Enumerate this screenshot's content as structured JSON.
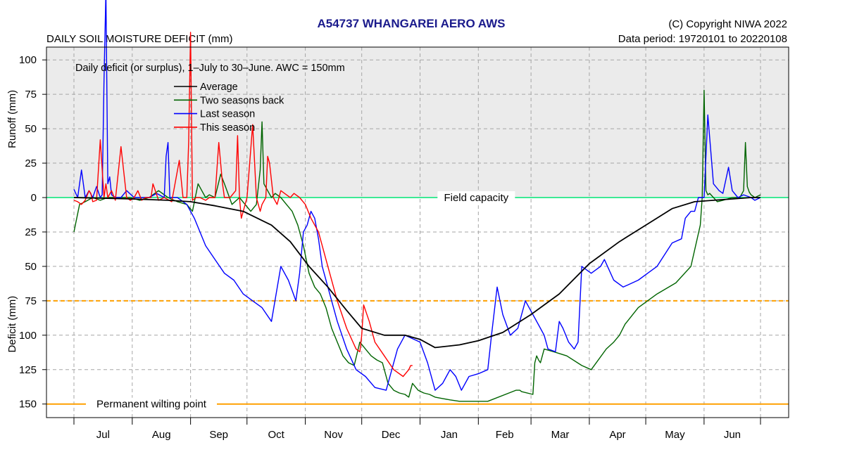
{
  "header": {
    "title": "A54737  WHANGAREI AERO AWS",
    "subtitle_left": "DAILY SOIL MOISTURE DEFICIT (mm)",
    "copyright": "(C) Copyright NIWA  2022",
    "data_period": "Data period:  19720101  to  20220108"
  },
  "colors": {
    "title": "#1a1a8c",
    "surplus_band": "#ebebeb",
    "field_capacity": "#00e676",
    "readily_available": "#ffa000",
    "wilting_point": "#ffa000",
    "average": "#000000",
    "two_seasons_back": "#006400",
    "last_season": "#0000ff",
    "this_season": "#ff0000"
  },
  "chart_data": {
    "type": "line",
    "title": "A54737  WHANGAREI AERO AWS",
    "annotation": "Daily deficit (or surplus), 1–July to 30–June.  AWC = 150mm",
    "ylabel_upper": "Runoff (mm)",
    "ylabel_lower": "Deficit (mm)",
    "y_is_deficit_positive_down": true,
    "ylim": [
      -110,
      160
    ],
    "yticks": [
      -100,
      -75,
      -50,
      -25,
      0,
      25,
      50,
      75,
      100,
      125,
      150
    ],
    "ytick_labels": [
      "100",
      "75",
      "50",
      "25",
      "0",
      "25",
      "50",
      "75",
      "100",
      "125",
      "150"
    ],
    "xlim_days": [
      0,
      365
    ],
    "months": [
      "Jul",
      "Aug",
      "Sep",
      "Oct",
      "Nov",
      "Dec",
      "Jan",
      "Feb",
      "Mar",
      "Apr",
      "May",
      "Jun"
    ],
    "month_start_days": [
      0,
      31,
      62,
      92,
      123,
      153,
      184,
      215,
      243,
      274,
      304,
      335,
      365
    ],
    "grid": true,
    "reference_lines": [
      {
        "label": "Field capacity",
        "y": 0
      },
      {
        "label": "",
        "y": 75
      },
      {
        "label": "Permanent wilting point",
        "y": 150
      }
    ],
    "legend": {
      "position": "top-left",
      "entries": [
        "Average",
        "Two seasons back",
        "Last season",
        "This season"
      ]
    },
    "series": [
      {
        "name": "Average",
        "x": [
          0,
          31,
          50,
          62,
          75,
          90,
          105,
          115,
          125,
          135,
          145,
          153,
          165,
          176,
          184,
          192,
          205,
          215,
          228,
          243,
          258,
          274,
          290,
          304,
          318,
          330,
          340,
          350,
          360,
          365
        ],
        "y": [
          0,
          1,
          2,
          3,
          6,
          10,
          20,
          32,
          50,
          65,
          82,
          95,
          100,
          100,
          103,
          109,
          107,
          104,
          98,
          85,
          70,
          48,
          32,
          20,
          8,
          3,
          2,
          1,
          0,
          0
        ]
      },
      {
        "name": "Two seasons back",
        "x": [
          0,
          3,
          6,
          10,
          14,
          18,
          22,
          27,
          30,
          35,
          40,
          45,
          50,
          55,
          60,
          63,
          66,
          68,
          70,
          72,
          75,
          78,
          80,
          84,
          88,
          91,
          94,
          97,
          99,
          100,
          101,
          103,
          105,
          107,
          110,
          113,
          116,
          119,
          122,
          125,
          128,
          131,
          134,
          137,
          140,
          143,
          146,
          149,
          152,
          155,
          158,
          161,
          164,
          167,
          170,
          173,
          176,
          178,
          180,
          183,
          186,
          189,
          192,
          196,
          200,
          205,
          210,
          215,
          220,
          235,
          236,
          237,
          238,
          244,
          245,
          246,
          247,
          248,
          250,
          255,
          262,
          270,
          275,
          283,
          287,
          290,
          293,
          300,
          310,
          320,
          328,
          333,
          334,
          335,
          336,
          337,
          338,
          340,
          342,
          345,
          350,
          354,
          356,
          357,
          358,
          359,
          360,
          362,
          365
        ],
        "y": [
          25,
          5,
          3,
          0,
          2,
          0,
          0,
          0,
          0,
          2,
          0,
          -5,
          0,
          3,
          5,
          10,
          -10,
          -5,
          0,
          -2,
          0,
          -17,
          -10,
          5,
          0,
          5,
          10,
          5,
          -20,
          -55,
          -10,
          -5,
          0,
          -3,
          0,
          5,
          10,
          20,
          35,
          55,
          65,
          70,
          80,
          95,
          105,
          115,
          120,
          122,
          105,
          110,
          115,
          118,
          120,
          135,
          140,
          142,
          143,
          145,
          135,
          140,
          142,
          143,
          145,
          146,
          147,
          148,
          148,
          148,
          148,
          140,
          140,
          140,
          141,
          143,
          120,
          115,
          118,
          120,
          110,
          112,
          115,
          122,
          125,
          110,
          105,
          100,
          92,
          80,
          70,
          62,
          50,
          20,
          0,
          -78,
          -5,
          -2,
          -3,
          0,
          3,
          2,
          0,
          0,
          -5,
          -40,
          -8,
          -4,
          -2,
          0,
          -2
        ]
      },
      {
        "name": "Last season",
        "x": [
          0,
          2,
          4,
          6,
          8,
          10,
          12,
          14,
          15,
          16,
          17,
          18,
          19,
          20,
          22,
          25,
          28,
          32,
          36,
          40,
          44,
          48,
          49,
          50,
          51,
          55,
          60,
          64,
          70,
          75,
          80,
          85,
          90,
          95,
          100,
          105,
          110,
          114,
          118,
          120,
          122,
          124,
          126,
          128,
          130,
          132,
          135,
          140,
          145,
          150,
          155,
          160,
          166,
          172,
          176,
          184,
          188,
          192,
          196,
          198,
          200,
          203,
          206,
          210,
          215,
          220,
          222,
          225,
          228,
          232,
          236,
          240,
          244,
          248,
          250,
          252,
          256,
          258,
          260,
          263,
          266,
          268,
          270,
          275,
          280,
          282,
          287,
          292,
          300,
          305,
          310,
          318,
          323,
          325,
          328,
          330,
          332,
          335,
          337,
          340,
          343,
          345,
          348,
          350,
          353,
          356,
          360,
          362,
          365
        ],
        "y": [
          -6,
          0,
          -20,
          0,
          -5,
          0,
          -8,
          0,
          -2,
          -85,
          -150,
          -10,
          -15,
          -2,
          0,
          0,
          -5,
          0,
          0,
          0,
          -3,
          0,
          -30,
          -40,
          0,
          0,
          5,
          15,
          35,
          45,
          55,
          60,
          70,
          75,
          80,
          90,
          50,
          60,
          75,
          55,
          25,
          20,
          10,
          15,
          30,
          50,
          65,
          90,
          110,
          125,
          130,
          138,
          140,
          110,
          100,
          105,
          120,
          140,
          135,
          130,
          125,
          130,
          140,
          130,
          128,
          125,
          100,
          65,
          85,
          100,
          95,
          75,
          85,
          95,
          100,
          110,
          112,
          90,
          95,
          105,
          110,
          105,
          50,
          55,
          50,
          45,
          60,
          65,
          60,
          55,
          50,
          33,
          30,
          15,
          10,
          10,
          0,
          0,
          -60,
          -10,
          -5,
          -3,
          -22,
          -5,
          0,
          -2,
          0,
          2,
          0
        ]
      },
      {
        "name": "This season",
        "x": [
          0,
          2,
          4,
          6,
          8,
          9,
          10,
          12,
          14,
          16,
          17,
          18,
          20,
          22,
          25,
          28,
          30,
          32,
          34,
          36,
          38,
          41,
          42,
          45,
          48,
          52,
          56,
          58,
          60,
          61,
          62,
          63,
          65,
          67,
          70,
          72,
          75,
          77,
          79,
          80,
          83,
          86,
          87,
          88,
          89,
          92,
          95,
          97,
          98,
          99,
          100,
          102,
          103,
          104,
          106,
          108,
          110,
          113,
          115,
          117,
          120,
          123,
          126,
          130,
          135,
          140,
          145,
          150,
          152,
          153,
          154,
          157,
          160,
          165,
          170,
          175,
          178,
          179,
          180
        ],
        "y": [
          2,
          3,
          5,
          2,
          -5,
          -3,
          3,
          2,
          -42,
          0,
          -10,
          0,
          -5,
          2,
          -37,
          0,
          2,
          0,
          -5,
          2,
          0,
          0,
          -10,
          2,
          0,
          3,
          -27,
          0,
          0,
          -40,
          -120,
          2,
          0,
          0,
          2,
          0,
          0,
          -40,
          -10,
          0,
          0,
          -5,
          -45,
          0,
          15,
          0,
          -53,
          0,
          5,
          10,
          5,
          0,
          -30,
          -25,
          0,
          5,
          -5,
          -2,
          0,
          -3,
          0,
          5,
          15,
          25,
          50,
          75,
          95,
          110,
          112,
          100,
          78,
          90,
          105,
          115,
          125,
          130,
          125,
          122,
          122
        ]
      }
    ]
  }
}
